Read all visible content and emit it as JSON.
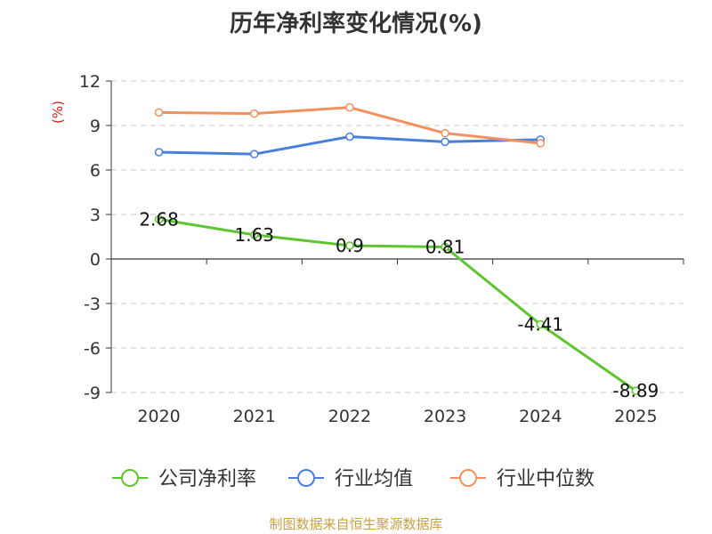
{
  "chart_data": {
    "type": "line",
    "title": "历年净利率变化情况(%)",
    "ylabel": "(%)",
    "xlabel": "",
    "categories": [
      "2020",
      "2021",
      "2022",
      "2023",
      "2024",
      "2025"
    ],
    "yticks": [
      12,
      9,
      6,
      3,
      0,
      -3,
      -6,
      -9
    ],
    "ylim": [
      -9,
      12
    ],
    "grid": true,
    "legend_position": "bottom",
    "series": [
      {
        "name": "公司净利率",
        "color": "#5fc52e",
        "values": [
          2.68,
          1.63,
          0.9,
          0.81,
          -4.41,
          -8.89
        ],
        "labels": [
          "2.68",
          "1.63",
          "0.9",
          "0.81",
          "-4.41",
          "-8.89"
        ]
      },
      {
        "name": "行业均值",
        "color": "#4a7fd9",
        "values": [
          7.2,
          7.07,
          8.25,
          7.9,
          8.05,
          null
        ]
      },
      {
        "name": "行业中位数",
        "color": "#f29160",
        "values": [
          9.88,
          9.8,
          10.22,
          8.48,
          7.8,
          null
        ]
      }
    ],
    "source": "制图数据来自恒生聚源数据库"
  }
}
